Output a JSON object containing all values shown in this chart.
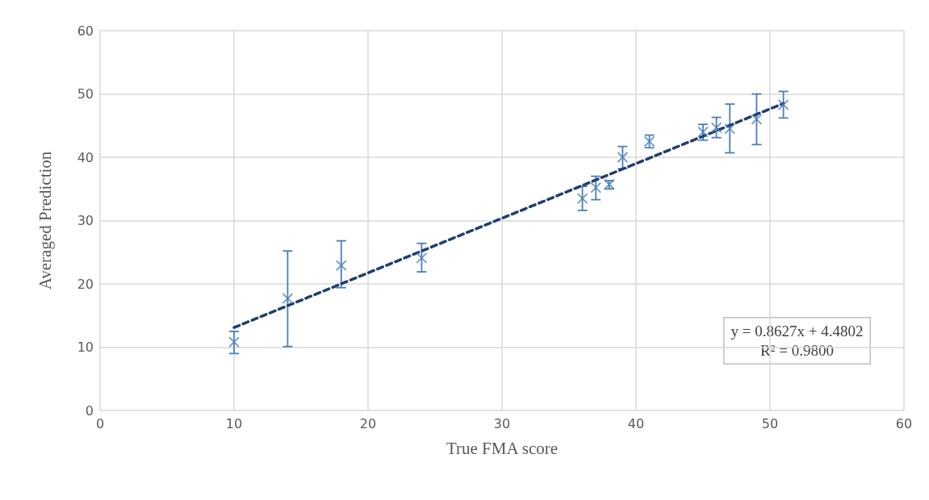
{
  "chart_data": {
    "type": "scatter",
    "xlabel": "True FMA score",
    "ylabel": "Averaged Prediction",
    "xlim": [
      0,
      60
    ],
    "xticks": [
      0,
      10,
      20,
      30,
      40,
      50,
      60
    ],
    "ylim": [
      0,
      60
    ],
    "yticks": [
      0,
      10,
      20,
      30,
      40,
      50,
      60
    ],
    "grid": true,
    "legend": false,
    "marker": "cross",
    "series": [
      {
        "color": "#4a7ebb",
        "x": [
          10,
          14,
          18,
          24,
          36,
          37,
          38,
          39,
          41,
          45,
          46,
          47,
          49,
          51
        ],
        "values": [
          10.8,
          17.7,
          22.9,
          24.1,
          33.5,
          35.2,
          35.7,
          40.0,
          42.5,
          44.0,
          44.7,
          44.5,
          46.0,
          48.3
        ],
        "errors": [
          [
            9.0,
            12.5
          ],
          [
            10.1,
            25.2
          ],
          [
            19.4,
            26.8
          ],
          [
            21.9,
            26.4
          ],
          [
            31.6,
            35.4
          ],
          [
            33.3,
            37.0
          ],
          [
            35.0,
            36.3
          ],
          [
            38.2,
            41.7
          ],
          [
            41.5,
            43.5
          ],
          [
            42.7,
            45.2
          ],
          [
            43.1,
            46.3
          ],
          [
            40.7,
            48.4
          ],
          [
            42.0,
            50.0
          ],
          [
            46.2,
            50.4
          ]
        ]
      },
      {
        "type": "line",
        "color": "#1f3f6e",
        "x": [
          10,
          51
        ],
        "values": [
          13.1,
          48.5
        ],
        "marker": "none",
        "line_style": "dashed"
      }
    ],
    "annotations": [
      "y = 0.8627x + 4.4802\nR² = 0.9800"
    ]
  }
}
